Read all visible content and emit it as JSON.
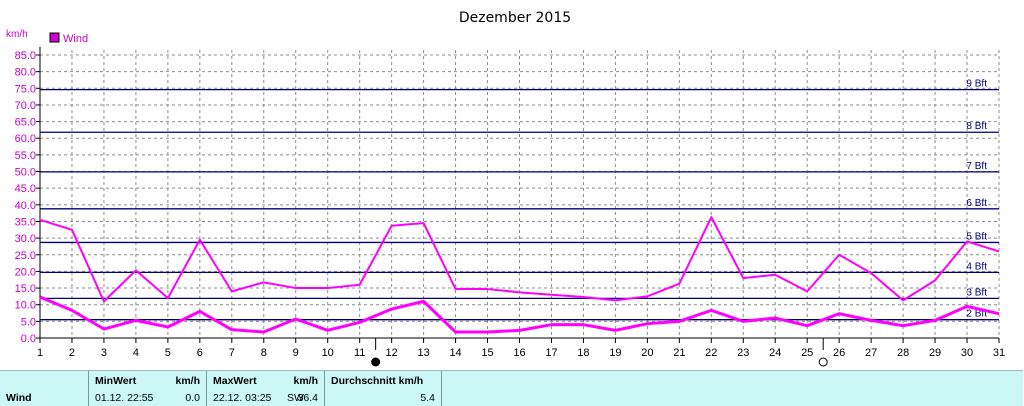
{
  "chart_data": {
    "type": "line",
    "title": "Dezember 2015",
    "ylabel": "km/h",
    "ylim": [
      0,
      85
    ],
    "yticks": [
      "0.0",
      "5.0",
      "10.0",
      "15.0",
      "20.0",
      "25.0",
      "30.0",
      "35.0",
      "40.0",
      "45.0",
      "50.0",
      "55.0",
      "60.0",
      "65.0",
      "70.0",
      "75.0",
      "80.0",
      "85.0"
    ],
    "x": [
      1,
      2,
      3,
      4,
      5,
      6,
      7,
      8,
      9,
      10,
      11,
      12,
      13,
      14,
      15,
      16,
      17,
      18,
      19,
      20,
      21,
      22,
      23,
      24,
      25,
      26,
      27,
      28,
      29,
      30,
      31
    ],
    "xlim": [
      1,
      31
    ],
    "grid": true,
    "legend": {
      "position": "top-left",
      "label": "Wind"
    },
    "series": [
      {
        "color": "#ff00ff",
        "values": [
          35.5,
          32.5,
          11,
          20.3,
          12,
          29.5,
          14,
          16.7,
          15,
          15,
          16,
          33.7,
          34.5,
          14.7,
          14.7,
          13.7,
          13,
          12.3,
          11.3,
          12.5,
          16.3,
          36.3,
          18,
          19,
          14,
          25,
          19.5,
          11.3,
          17.3,
          29,
          26
        ]
      },
      {
        "color": "#ff00ff",
        "values": [
          12.3,
          8.3,
          2.7,
          5.3,
          3.3,
          8,
          2.5,
          1.8,
          5.7,
          2.3,
          4.7,
          8.7,
          11,
          1.8,
          1.8,
          2.3,
          4,
          4,
          2.3,
          4.3,
          5,
          8.3,
          5,
          6,
          3.7,
          7.3,
          5.3,
          3.7,
          5.3,
          9.5,
          7.3
        ]
      }
    ],
    "beaufort": [
      {
        "label": "2 Bft",
        "value": 5.5
      },
      {
        "label": "3 Bft",
        "value": 11.9
      },
      {
        "label": "4 Bft",
        "value": 19.7
      },
      {
        "label": "5 Bft",
        "value": 28.7
      },
      {
        "label": "6 Bft",
        "value": 38.8
      },
      {
        "label": "7 Bft",
        "value": 49.9
      },
      {
        "label": "8 Bft",
        "value": 61.8
      },
      {
        "label": "9 Bft",
        "value": 74.6
      }
    ],
    "moon": [
      {
        "day": 11.5,
        "phase": "new-moon"
      },
      {
        "day": 25.5,
        "phase": "full-moon"
      }
    ]
  },
  "stats": {
    "row_label": "Wind",
    "min_header": "MinWert",
    "min_unit": "km/h",
    "min_time": "01.12.  22:55",
    "min_value": "0.0",
    "max_header": "MaxWert",
    "max_unit": "km/h",
    "max_time": "22.12.  03:25",
    "max_dir": "SW",
    "max_value": "36.4",
    "avg_header": "Durchschnitt km/h",
    "avg_value": "5.4"
  }
}
